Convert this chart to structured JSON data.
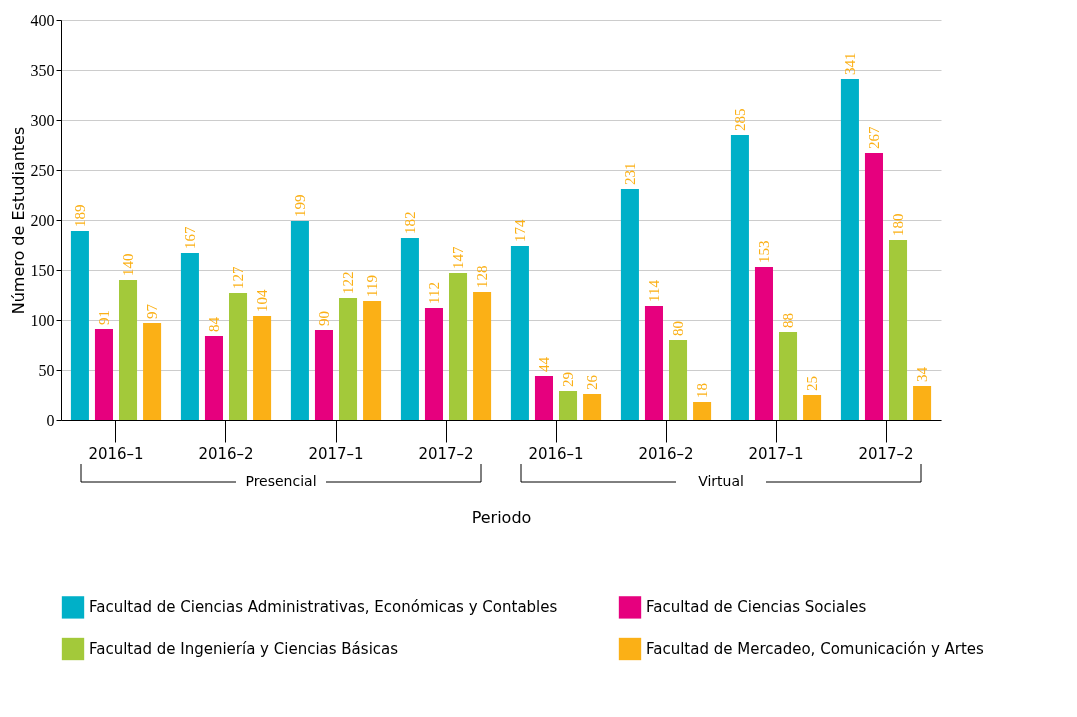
{
  "chart_data": {
    "type": "bar",
    "xlabel": "Periodo",
    "ylabel": "Número de Estudiantes",
    "categories": [
      "2016–1",
      "2016–2",
      "2017–1",
      "2017–2",
      "2016–1",
      "2016–2",
      "2017–1",
      "2017–2"
    ],
    "series": [
      {
        "name": "Facultad de Ciencias Administrativas, Económicas y Contables",
        "color": "#00b0c8",
        "values": [
          189,
          167,
          199,
          182,
          174,
          231,
          285,
          341
        ]
      },
      {
        "name": "Facultad de Ciencias Sociales",
        "color": "#e6007e",
        "values": [
          91,
          84,
          90,
          112,
          44,
          114,
          153,
          267
        ]
      },
      {
        "name": "Facultad de Ingeniería y Ciencias Básicas",
        "color": "#a3c93a",
        "values": [
          140,
          127,
          122,
          147,
          29,
          80,
          88,
          180
        ]
      },
      {
        "name": "Facultad de Mercadeo, Comunicación y Artes",
        "color": "#fbb016",
        "values": [
          97,
          104,
          119,
          128,
          26,
          18,
          25,
          34
        ]
      }
    ],
    "ylim": [
      0,
      400
    ],
    "yticks": [
      0,
      50,
      100,
      150,
      200,
      250,
      300,
      350,
      400
    ],
    "grid": "y",
    "legend": "bottom",
    "data_labels": true,
    "annotations": [
      "Presencial",
      "Virtual"
    ]
  }
}
